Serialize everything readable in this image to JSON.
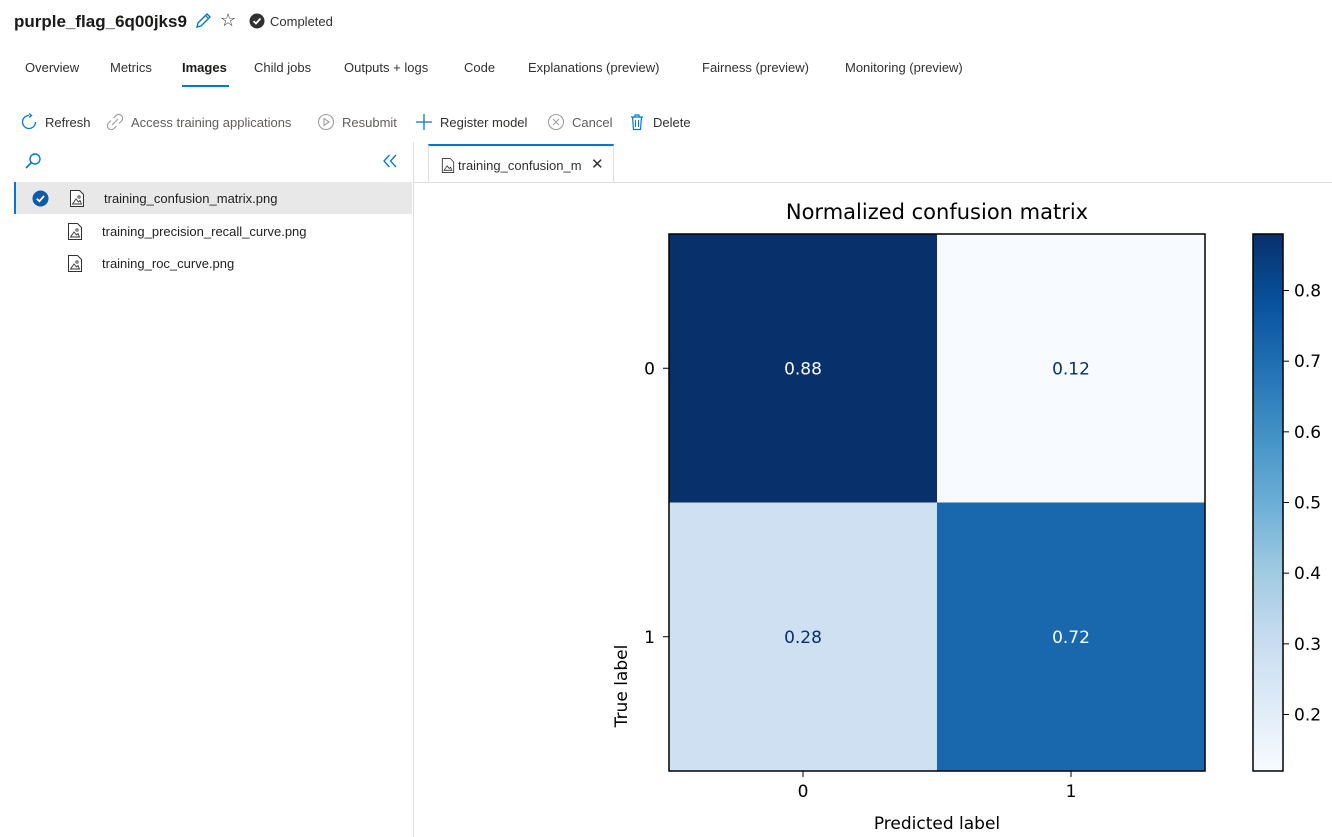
{
  "header": {
    "job_name": "purple_flag_6q00jks9",
    "status": "Completed"
  },
  "tabs": [
    {
      "label": "Overview"
    },
    {
      "label": "Metrics"
    },
    {
      "label": "Images",
      "active": true
    },
    {
      "label": "Child jobs"
    },
    {
      "label": "Outputs + logs"
    },
    {
      "label": "Code"
    },
    {
      "label": "Explanations (preview)"
    },
    {
      "label": "Fairness (preview)"
    },
    {
      "label": "Monitoring (preview)"
    }
  ],
  "toolbar": {
    "refresh": "Refresh",
    "access_training": "Access training applications",
    "resubmit": "Resubmit",
    "register_model": "Register model",
    "cancel": "Cancel",
    "delete": "Delete"
  },
  "files": [
    {
      "name": "training_confusion_matrix.png",
      "selected": true
    },
    {
      "name": "training_precision_recall_curve.png"
    },
    {
      "name": "training_roc_curve.png"
    }
  ],
  "open_tab": {
    "label": "training_confusion_m"
  },
  "colors": {
    "accent": "#0078d4",
    "status_icon": "#323130"
  },
  "icons": {
    "edit": "pencil-icon",
    "favorite": "star-icon",
    "status": "check-circle-icon",
    "refresh": "refresh-icon",
    "access": "link-icon",
    "resubmit": "play-circle-icon",
    "register": "plus-icon",
    "cancel": "cancel-circle-icon",
    "delete": "trash-icon",
    "search": "search-icon",
    "collapse": "double-chevron-left-icon",
    "file": "image-file-icon"
  },
  "chart_data": {
    "type": "heatmap",
    "title": "Normalized confusion matrix",
    "xlabel": "Predicted label",
    "ylabel": "True label",
    "x_categories": [
      "0",
      "1"
    ],
    "y_categories": [
      "0",
      "1"
    ],
    "values": [
      [
        0.88,
        0.12
      ],
      [
        0.28,
        0.72
      ]
    ],
    "value_labels": [
      [
        "0.88",
        "0.12"
      ],
      [
        "0.28",
        "0.72"
      ]
    ],
    "colormap": "Blues",
    "colorbar": {
      "range": [
        0.12,
        0.88
      ],
      "ticks": [
        "0.2",
        "0.3",
        "0.4",
        "0.5",
        "0.6",
        "0.7",
        "0.8"
      ]
    }
  }
}
